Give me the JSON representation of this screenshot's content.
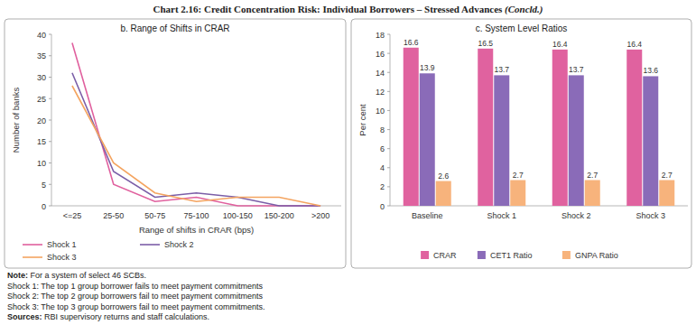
{
  "header": {
    "title": "Chart 2.16: Credit Concentration Risk: Individual Borrowers – Stressed Advances",
    "suffix": "(Concld.)"
  },
  "chart_data": [
    {
      "type": "line",
      "title": "b. Range of Shifts in CRAR",
      "categories": [
        "<=25",
        "25-50",
        "50-75",
        "75-100",
        "100-150",
        "150-200",
        ">200"
      ],
      "x_label": "Range of shifts in CRAR (bps)",
      "y_label": "Number of banks",
      "ylim": [
        0,
        40
      ],
      "yticks": [
        0,
        5,
        10,
        15,
        20,
        25,
        30,
        35,
        40
      ],
      "grid": false,
      "legend": "bottom",
      "series": [
        {
          "name": "Shock 1",
          "color": "#e0609e",
          "values": [
            38,
            5,
            1,
            2,
            0,
            0,
            0
          ]
        },
        {
          "name": "Shock 2",
          "color": "#7b5ea7",
          "values": [
            31,
            8,
            2,
            3,
            2,
            0,
            0
          ]
        },
        {
          "name": "Shock 3",
          "color": "#f4a460",
          "values": [
            28,
            10,
            3,
            1,
            2,
            2,
            0
          ]
        }
      ]
    },
    {
      "type": "bar",
      "title": "c. System Level Ratios",
      "categories": [
        "Baseline",
        "Shock 1",
        "Shock 2",
        "Shock 3"
      ],
      "y_label": "Per cent",
      "ylim": [
        0,
        18
      ],
      "yticks": [
        0,
        2,
        4,
        6,
        8,
        10,
        12,
        14,
        16,
        18
      ],
      "grid": false,
      "legend": "bottom",
      "data_labels": true,
      "series": [
        {
          "name": "CRAR",
          "color": "#e0629f",
          "values": [
            16.6,
            16.5,
            16.4,
            16.4
          ]
        },
        {
          "name": "CET1 Ratio",
          "color": "#8a6bb8",
          "values": [
            13.9,
            13.7,
            13.7,
            13.6
          ]
        },
        {
          "name": "GNPA Ratio",
          "color": "#f7b37c",
          "values": [
            2.6,
            2.7,
            2.7,
            2.7
          ]
        }
      ]
    }
  ],
  "footer": {
    "note_label": "Note:",
    "note": "For a system of select 46 SCBs.",
    "shocks": [
      "Shock 1: The top 1 group borrower fails to meet payment commitments",
      "Shock 2: The top 2 group borrowers fail to meet payment commitments",
      "Shock 3: The top 3 group borrowers fail to meet payment commitments."
    ],
    "sources_label": "Sources:",
    "sources": "RBI supervisory returns and staff calculations."
  }
}
